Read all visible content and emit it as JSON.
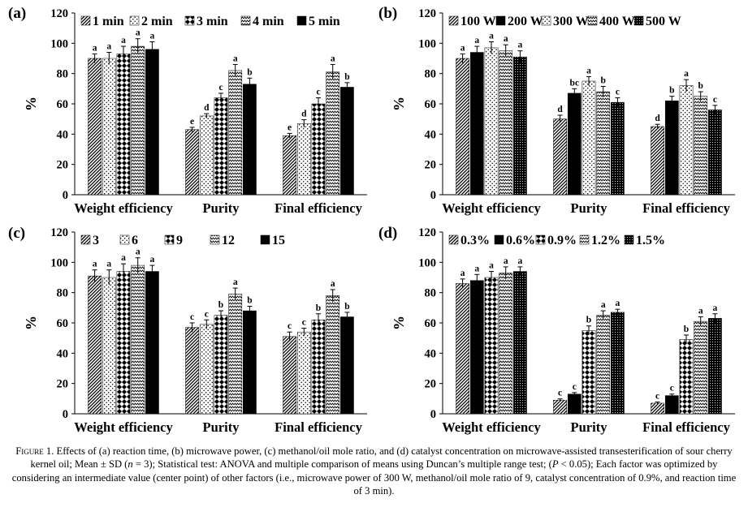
{
  "chart_data": [
    {
      "type": "bar",
      "panel_label": "(a)",
      "categories": [
        "Weight efficiency",
        "Purity",
        "Final efficiency"
      ],
      "ylabel": "%",
      "ylim": [
        0,
        120
      ],
      "yticks": [
        0,
        20,
        40,
        60,
        80,
        100,
        120
      ],
      "legend_position": "top",
      "series": [
        {
          "name": "1 min",
          "pattern": "diag-right",
          "values": [
            90,
            43,
            39
          ],
          "errors": [
            3,
            1.5,
            1.5
          ],
          "letters": [
            "a",
            "e",
            "e"
          ]
        },
        {
          "name": "2 min",
          "pattern": "dots-sparse",
          "values": [
            90,
            52,
            47
          ],
          "errors": [
            4,
            1.5,
            2.5
          ],
          "letters": [
            "a",
            "d",
            "d"
          ]
        },
        {
          "name": "3 min",
          "pattern": "checker",
          "values": [
            93,
            64,
            60
          ],
          "errors": [
            5,
            3,
            4
          ],
          "letters": [
            "a",
            "c",
            "c"
          ]
        },
        {
          "name": "4 min",
          "pattern": "zigzag",
          "values": [
            98,
            82,
            81
          ],
          "errors": [
            5,
            4,
            5
          ],
          "letters": [
            "a",
            "a",
            "a"
          ]
        },
        {
          "name": "5 min",
          "pattern": "solid",
          "values": [
            96,
            73,
            71
          ],
          "errors": [
            5,
            4,
            3
          ],
          "letters": [
            "a",
            "b",
            "b"
          ]
        }
      ]
    },
    {
      "type": "bar",
      "panel_label": "(b)",
      "categories": [
        "Weight efficiency",
        "Purity",
        "Final efficiency"
      ],
      "ylabel": "%",
      "ylim": [
        0,
        120
      ],
      "yticks": [
        0,
        20,
        40,
        60,
        80,
        100,
        120
      ],
      "legend_position": "top",
      "series": [
        {
          "name": "100 W",
          "pattern": "diag-right",
          "values": [
            90,
            50,
            45
          ],
          "errors": [
            3,
            2.5,
            1.5
          ],
          "letters": [
            "a",
            "d",
            "d"
          ]
        },
        {
          "name": "200 W",
          "pattern": "solid",
          "values": [
            94,
            67,
            62
          ],
          "errors": [
            4,
            3,
            3
          ],
          "letters": [
            "a",
            "bc",
            "b"
          ]
        },
        {
          "name": "300 W",
          "pattern": "dots-sparse",
          "values": [
            97,
            75,
            72
          ],
          "errors": [
            4,
            3,
            4
          ],
          "letters": [
            "a",
            "a",
            "a"
          ]
        },
        {
          "name": "400 W",
          "pattern": "zigzag",
          "values": [
            95,
            68,
            65
          ],
          "errors": [
            4,
            3.5,
            3
          ],
          "letters": [
            "a",
            "b",
            "b"
          ]
        },
        {
          "name": "500 W",
          "pattern": "dots-dense",
          "values": [
            91,
            61,
            56
          ],
          "errors": [
            4,
            3,
            3
          ],
          "letters": [
            "a",
            "c",
            "c"
          ]
        }
      ]
    },
    {
      "type": "bar",
      "panel_label": "(c)",
      "categories": [
        "Weight efficiency",
        "Purity",
        "Final efficiency"
      ],
      "ylabel": "%",
      "ylim": [
        0,
        120
      ],
      "yticks": [
        0,
        20,
        40,
        60,
        80,
        100,
        120
      ],
      "legend_position": "top",
      "series": [
        {
          "name": "3",
          "pattern": "diag-right",
          "values": [
            91,
            57,
            51
          ],
          "errors": [
            4,
            3,
            3
          ],
          "letters": [
            "a",
            "c",
            "c"
          ]
        },
        {
          "name": "6",
          "pattern": "dots-sparse",
          "values": [
            90,
            59,
            54
          ],
          "errors": [
            5,
            3,
            2.5
          ],
          "letters": [
            "a",
            "c",
            "c"
          ]
        },
        {
          "name": "9",
          "pattern": "checker",
          "values": [
            94,
            65,
            62
          ],
          "errors": [
            5,
            3,
            4
          ],
          "letters": [
            "a",
            "b",
            "b"
          ]
        },
        {
          "name": "12",
          "pattern": "zigzag",
          "values": [
            98,
            79,
            78
          ],
          "errors": [
            5,
            4,
            4
          ],
          "letters": [
            "a",
            "a",
            "a"
          ]
        },
        {
          "name": "15",
          "pattern": "solid",
          "values": [
            94,
            68,
            64
          ],
          "errors": [
            4,
            3,
            3
          ],
          "letters": [
            "a",
            "b",
            "b"
          ]
        }
      ]
    },
    {
      "type": "bar",
      "panel_label": "(d)",
      "categories": [
        "Weight efficiency",
        "Purity",
        "Final efficiency"
      ],
      "ylabel": "%",
      "ylim": [
        0,
        120
      ],
      "yticks": [
        0,
        20,
        40,
        60,
        80,
        100,
        120
      ],
      "legend_position": "top",
      "series": [
        {
          "name": "0.3%",
          "pattern": "diag-right",
          "values": [
            86,
            9,
            7
          ],
          "errors": [
            3,
            0.8,
            0.8
          ],
          "letters": [
            "a",
            "c",
            "c"
          ]
        },
        {
          "name": "0.6%",
          "pattern": "solid",
          "values": [
            88,
            13,
            12
          ],
          "errors": [
            4,
            1,
            1
          ],
          "letters": [
            "a",
            "c",
            "c"
          ]
        },
        {
          "name": "0.9%",
          "pattern": "checker",
          "values": [
            90,
            55,
            49
          ],
          "errors": [
            4,
            3,
            3
          ],
          "letters": [
            "a",
            "b",
            "b"
          ]
        },
        {
          "name": "1.2%",
          "pattern": "zigzag",
          "values": [
            93,
            65,
            61
          ],
          "errors": [
            4,
            3,
            3
          ],
          "letters": [
            "a",
            "a",
            "a"
          ]
        },
        {
          "name": "1.5%",
          "pattern": "dots-dense",
          "values": [
            94,
            67,
            63
          ],
          "errors": [
            3,
            2,
            3
          ],
          "letters": [
            "a",
            "a",
            "a"
          ]
        }
      ]
    }
  ],
  "caption": {
    "figure_label": "Figure 1.",
    "text_1": " Effects of (a) reaction time, (b) microwave power, (c) methanol/oil mole ratio, and (d) catalyst concentration on microwave-assisted transesterification of sour cherry kernel oil; Mean ± SD (",
    "n_symbol": "n",
    "text_2": " = 3); Statistical test: ANOVA and multiple comparison of means using Duncan’s multiple range test; (",
    "p_symbol": "P",
    "text_3": " < 0.05); Each factor was optimized by considering an intermediate value (center point) of other factors (i.e., microwave power of 300 W, methanol/oil mole ratio of 9, catalyst concentration of 0.9%, and reaction time of 3 min)."
  }
}
